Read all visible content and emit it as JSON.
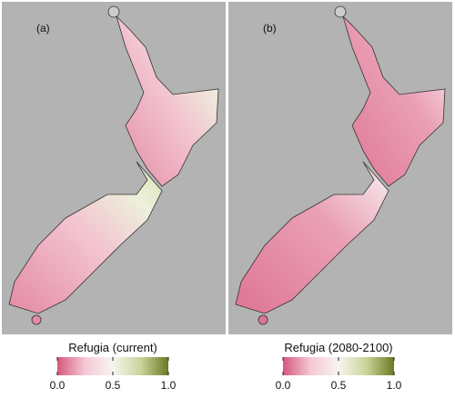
{
  "panels": [
    {
      "label": "(a)",
      "legend": {
        "title": "Refugia (current)",
        "lim": [
          0,
          1
        ],
        "ticks": [
          {
            "value": 0,
            "label": "0.0"
          },
          0.5,
          {
            "value": 1,
            "label": "1.0"
          }
        ],
        "colors": [
          "#d5577c",
          "#f4c9d6",
          "#f7f5ef",
          "#c9d59a",
          "#6b7a22"
        ]
      }
    },
    {
      "label": "(b)",
      "legend": {
        "title": "Refugia (2080-2100)",
        "lim": [
          0,
          1
        ],
        "ticks": [
          {
            "value": 0,
            "label": "0.0"
          },
          0.5,
          {
            "value": 1,
            "label": "1.0"
          }
        ],
        "colors": [
          "#d5577c",
          "#f4c9d6",
          "#f7f5ef",
          "#c9d59a",
          "#6b7a22"
        ]
      }
    }
  ]
}
